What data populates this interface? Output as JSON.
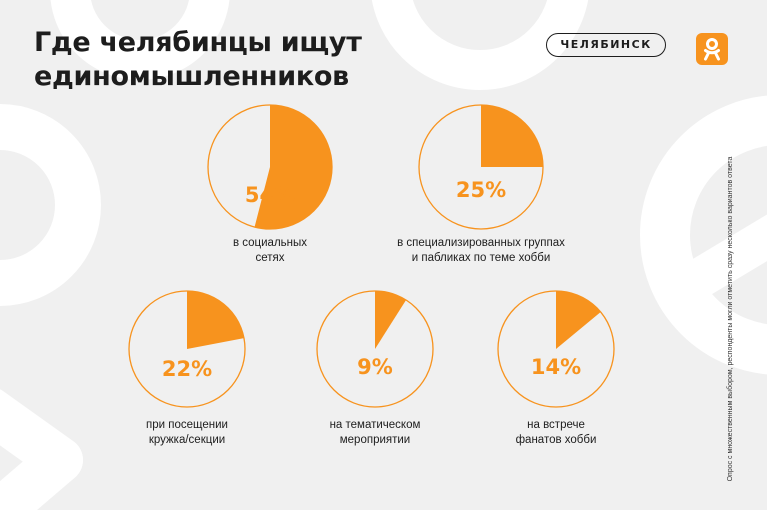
{
  "title": {
    "line1": "Где челябинцы ищут",
    "line2": "единомышленников"
  },
  "city_badge": "ЧЕЛЯБИНСК",
  "logo": {
    "icon": "ok-logo-icon",
    "color": "#f7931e"
  },
  "footnote": "Опрос с множественным выбором, респонденты могли отметить сразу несколько вариантов ответа",
  "colors": {
    "accent": "#f7931e",
    "background": "#f0f0f0",
    "text": "#1d1d1d"
  },
  "chart_data": {
    "type": "pie",
    "items": [
      {
        "value": 54,
        "value_label": "54%",
        "label_lines": [
          "в социальных",
          "сетях"
        ]
      },
      {
        "value": 25,
        "value_label": "25%",
        "label_lines": [
          "в специализированных группах",
          "и пабликах по теме хобби"
        ]
      },
      {
        "value": 22,
        "value_label": "22%",
        "label_lines": [
          "при посещении",
          "кружка/секции"
        ]
      },
      {
        "value": 9,
        "value_label": "9%",
        "label_lines": [
          "на тематическом",
          "мероприятии"
        ]
      },
      {
        "value": 14,
        "value_label": "14%",
        "label_lines": [
          "на встрече",
          "фанатов хобби"
        ]
      }
    ]
  }
}
